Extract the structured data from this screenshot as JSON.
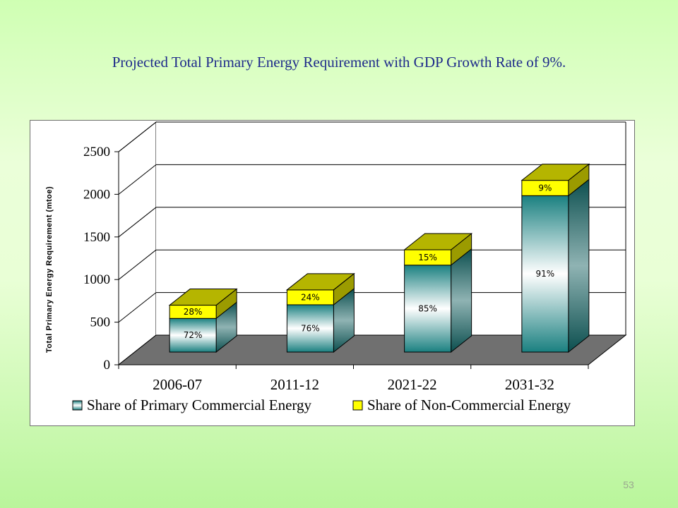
{
  "slide": {
    "title": "Projected Total Primary Energy Requirement with GDP Growth Rate of 9%.",
    "page_number": "53"
  },
  "chart_data": {
    "type": "bar",
    "stacked": true,
    "three_d": true,
    "title": "",
    "xlabel": "",
    "ylabel": "Total Primary Energy Requirement (mtoe)",
    "ylim": [
      0,
      2500
    ],
    "yticks": [
      0,
      500,
      1000,
      1500,
      2000,
      2500
    ],
    "grid": true,
    "legend_position": "bottom",
    "categories": [
      "2006-07",
      "2011-12",
      "2021-22",
      "2031-32"
    ],
    "series": [
      {
        "name": "Share of Primary Commercial Energy",
        "values": [
          395,
          555,
          1020,
          1835
        ],
        "labels": [
          "72%",
          "76%",
          "85%",
          "91%"
        ],
        "color": "#1f8c8c"
      },
      {
        "name": "Share of Non-Commercial Energy",
        "values": [
          155,
          175,
          180,
          180
        ],
        "labels": [
          "28%",
          "24%",
          "15%",
          "9%"
        ],
        "color": "#ffff00"
      }
    ]
  }
}
